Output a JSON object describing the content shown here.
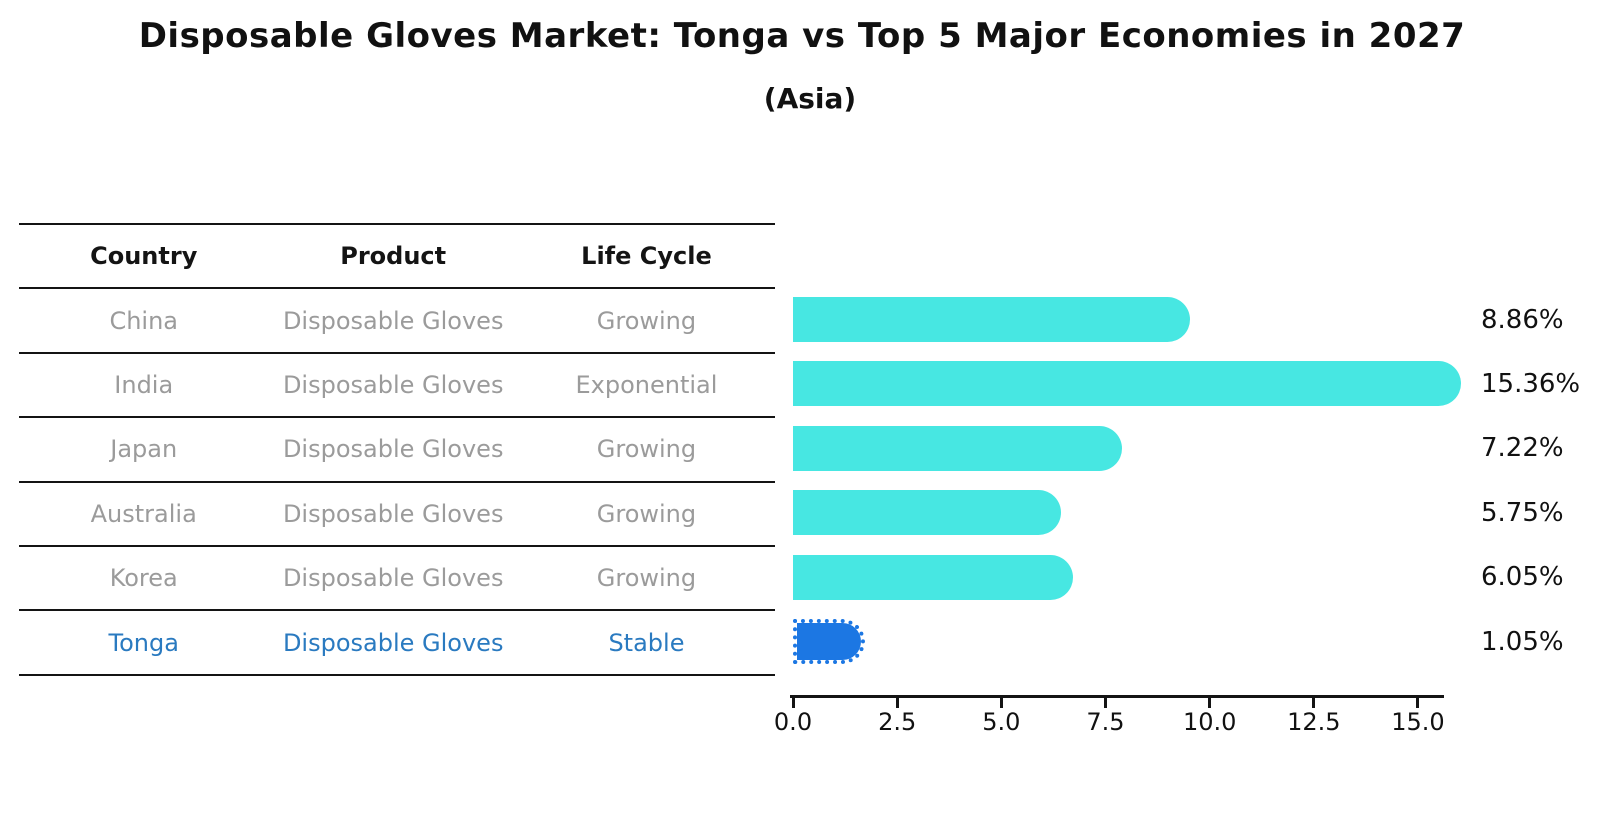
{
  "title": "Disposable Gloves Market: Tonga vs Top 5 Major Economies in 2027",
  "subtitle": "(Asia)",
  "table": {
    "headers": [
      "Country",
      "Product",
      "Life Cycle"
    ],
    "rows": [
      {
        "country": "China",
        "product": "Disposable Gloves",
        "life_cycle": "Growing",
        "highlight": false
      },
      {
        "country": "India",
        "product": "Disposable Gloves",
        "life_cycle": "Exponential",
        "highlight": false
      },
      {
        "country": "Japan",
        "product": "Disposable Gloves",
        "life_cycle": "Growing",
        "highlight": false
      },
      {
        "country": "Australia",
        "product": "Disposable Gloves",
        "life_cycle": "Growing",
        "highlight": false
      },
      {
        "country": "Korea",
        "product": "Disposable Gloves",
        "life_cycle": "Growing",
        "highlight": false
      },
      {
        "country": "Tonga",
        "product": "Disposable Gloves",
        "life_cycle": "Stable",
        "highlight": true
      }
    ]
  },
  "chart_data": {
    "type": "bar",
    "orientation": "horizontal",
    "title": "Disposable Gloves Market: Tonga vs Top 5 Major Economies in 2027",
    "subtitle": "(Asia)",
    "categories": [
      "China",
      "India",
      "Japan",
      "Australia",
      "Korea",
      "Tonga"
    ],
    "values": [
      8.86,
      15.36,
      7.22,
      5.75,
      6.05,
      1.05
    ],
    "bar_labels": [
      "8.86%",
      "15.36%",
      "7.22%",
      "5.75%",
      "6.05%",
      "1.05%"
    ],
    "xlim": [
      0,
      15.7
    ],
    "xticks": [
      0.0,
      2.5,
      5.0,
      7.5,
      10.0,
      12.5,
      15.0
    ],
    "xtick_labels": [
      "0.0",
      "2.5",
      "5.0",
      "7.5",
      "10.0",
      "12.5",
      "15.0"
    ],
    "grid": false,
    "legend": "none",
    "highlight_index": 5
  },
  "colors": {
    "bar": "#47e7e2",
    "hibar": "#1c77e3",
    "link": "#2a7ac0"
  }
}
